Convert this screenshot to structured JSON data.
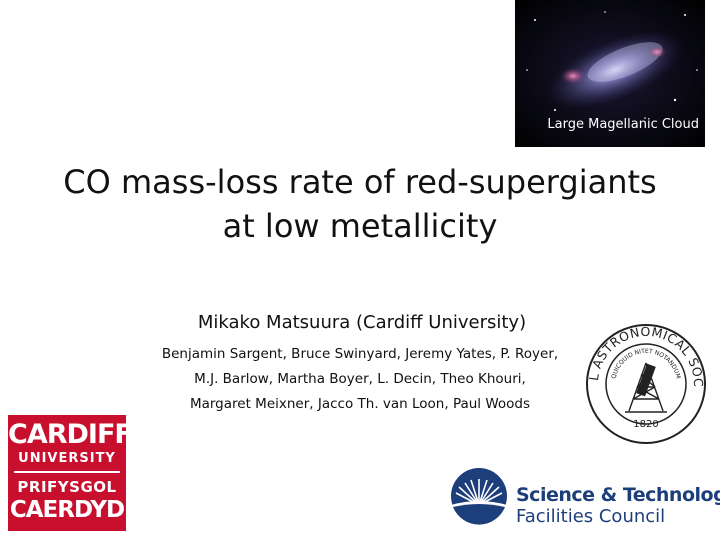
{
  "galaxy_image": {
    "caption": "Large Magellanic Cloud"
  },
  "title": {
    "line1": "CO mass-loss rate of red-supergiants",
    "line2": "at low metallicity"
  },
  "presenter": "Mikako Matsuura (Cardiff University)",
  "coauthors": {
    "line1": "Benjamin Sargent, Bruce Swinyard, Jeremy Yates, P. Royer,",
    "line2": "M.J. Barlow, Martha Boyer, L. Decin, Theo Khouri,",
    "line3": "Margaret Meixner, Jacco Th. van Loon,  Paul Woods"
  },
  "ras_logo": {
    "ring_top": "ROYAL ASTRONOMICAL SOCIETY",
    "motto": "QUICQUID NITET NOTANDUM",
    "year": "1820"
  },
  "cardiff_logo": {
    "line1": "CARDIFF",
    "line2": "UNIVERSITY",
    "line3": "PRIFYSGOL",
    "line4": "CAERDYD",
    "color": "#c8102e"
  },
  "stfc_logo": {
    "line1": "Science & Technology",
    "line2": "Facilities Council",
    "color": "#1c3f7c"
  }
}
